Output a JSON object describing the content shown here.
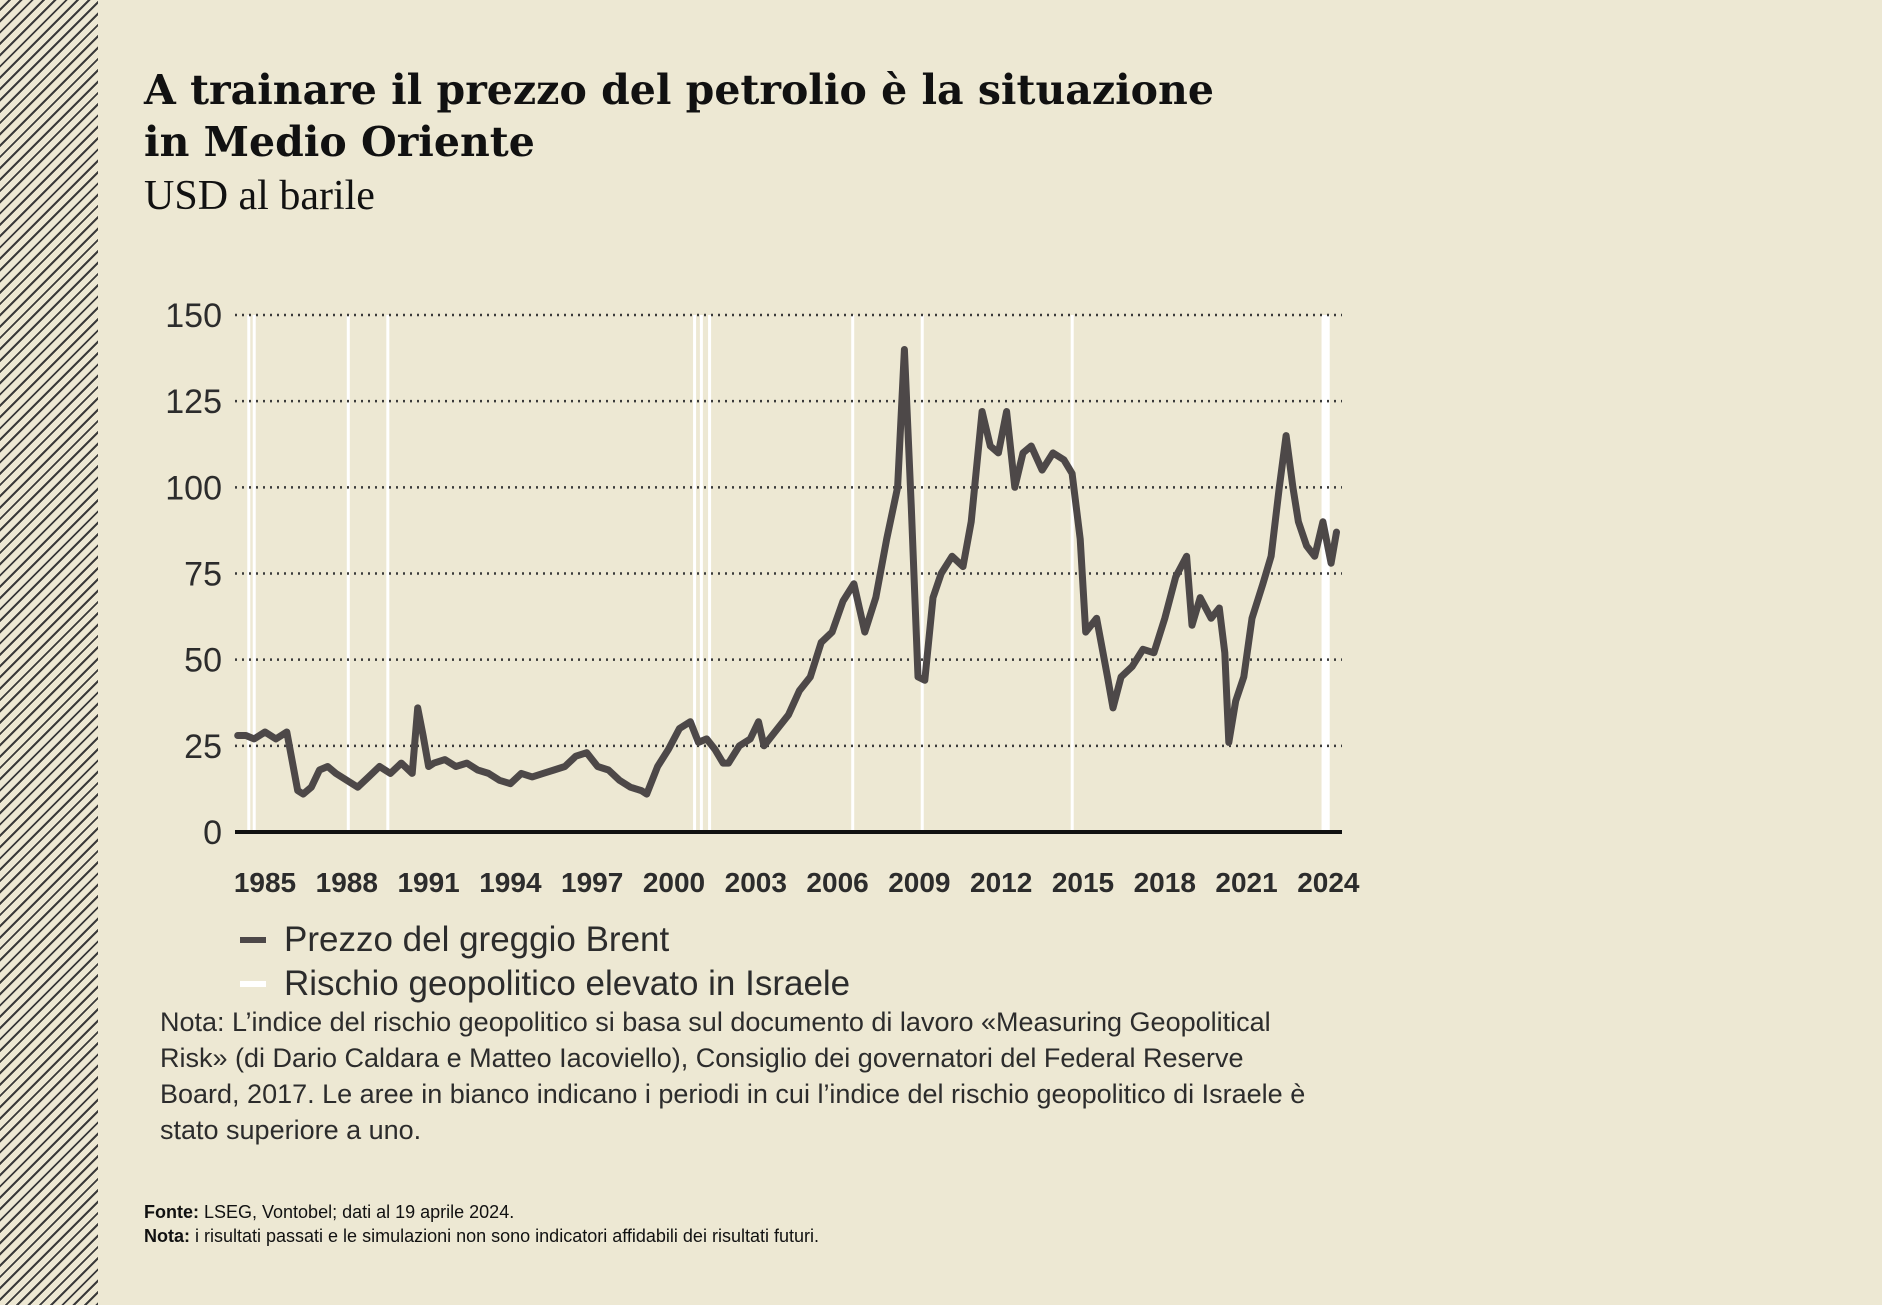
{
  "title_line1": "A trainare il prezzo del petrolio è la situazione",
  "title_line2": "in Medio Oriente",
  "subtitle": "USD al barile",
  "colors": {
    "background": "#ede8d3",
    "line": "#4d4848",
    "band": "#ffffff",
    "grid": "#3a3a3a"
  },
  "chart_data": {
    "type": "line",
    "title": "A trainare il prezzo del petrolio è la situazione in Medio Oriente",
    "ylabel": "USD al barile",
    "xlabel": "",
    "ylim": [
      0,
      150
    ],
    "xlim": [
      1983.9,
      2024.5
    ],
    "yticks": [
      "0",
      "25",
      "50",
      "75",
      "100",
      "125",
      "150"
    ],
    "xticks": [
      "1985",
      "1988",
      "1991",
      "1994",
      "1997",
      "2000",
      "2003",
      "2006",
      "2009",
      "2012",
      "2015",
      "2018",
      "2021",
      "2024"
    ],
    "grid": "horizontal dotted",
    "legend_position": "bottom-left",
    "series": [
      {
        "name": "Prezzo del greggio Brent",
        "x": [
          1984.0,
          1984.3,
          1984.6,
          1985.0,
          1985.4,
          1985.8,
          1986.2,
          1986.4,
          1986.7,
          1987.0,
          1987.3,
          1987.6,
          1988.0,
          1988.4,
          1988.8,
          1989.2,
          1989.6,
          1990.0,
          1990.4,
          1990.6,
          1990.8,
          1991.0,
          1991.2,
          1991.6,
          1992.0,
          1992.4,
          1992.8,
          1993.2,
          1993.6,
          1994.0,
          1994.4,
          1994.8,
          1995.2,
          1995.6,
          1996.0,
          1996.4,
          1996.8,
          1997.2,
          1997.6,
          1998.0,
          1998.4,
          1998.8,
          1999.0,
          1999.4,
          1999.8,
          2000.2,
          2000.6,
          2000.9,
          2001.2,
          2001.5,
          2001.8,
          2002.0,
          2002.4,
          2002.8,
          2003.1,
          2003.3,
          2003.8,
          2004.2,
          2004.6,
          2005.0,
          2005.4,
          2005.8,
          2006.2,
          2006.6,
          2007.0,
          2007.4,
          2007.8,
          2008.2,
          2008.45,
          2008.7,
          2008.95,
          2009.2,
          2009.5,
          2009.8,
          2010.2,
          2010.6,
          2010.9,
          2011.3,
          2011.6,
          2011.9,
          2012.2,
          2012.5,
          2012.8,
          2013.1,
          2013.5,
          2013.9,
          2014.3,
          2014.6,
          2014.9,
          2015.1,
          2015.5,
          2015.9,
          2016.1,
          2016.4,
          2016.8,
          2017.2,
          2017.6,
          2018.0,
          2018.4,
          2018.8,
          2019.0,
          2019.3,
          2019.7,
          2020.0,
          2020.2,
          2020.35,
          2020.6,
          2020.9,
          2021.2,
          2021.6,
          2021.9,
          2022.2,
          2022.45,
          2022.7,
          2022.9,
          2023.2,
          2023.5,
          2023.8,
          2024.1,
          2024.3
        ],
        "values": [
          28,
          28,
          27,
          29,
          27,
          29,
          12,
          11,
          13,
          18,
          19,
          17,
          15,
          13,
          16,
          19,
          17,
          20,
          17,
          36,
          28,
          19,
          20,
          21,
          19,
          20,
          18,
          17,
          15,
          14,
          17,
          16,
          17,
          18,
          19,
          22,
          23,
          19,
          18,
          15,
          13,
          12,
          11,
          19,
          24,
          30,
          32,
          26,
          27,
          24,
          20,
          20,
          25,
          27,
          32,
          25,
          30,
          34,
          41,
          45,
          55,
          58,
          67,
          72,
          58,
          68,
          85,
          100,
          140,
          95,
          45,
          44,
          68,
          75,
          80,
          77,
          90,
          122,
          112,
          110,
          122,
          100,
          110,
          112,
          105,
          110,
          108,
          104,
          85,
          58,
          62,
          45,
          36,
          45,
          48,
          53,
          52,
          62,
          74,
          80,
          60,
          68,
          62,
          65,
          52,
          26,
          38,
          45,
          62,
          72,
          80,
          100,
          115,
          100,
          90,
          83,
          80,
          90,
          78,
          87
        ]
      },
      {
        "name": "Rischio geopolitico elevato in Israele",
        "type": "band",
        "x_ranges": [
          [
            1984.35,
            1984.45
          ],
          [
            1984.55,
            1984.65
          ],
          [
            1988.0,
            1988.1
          ],
          [
            1989.45,
            1989.55
          ],
          [
            2000.7,
            2000.8
          ],
          [
            2000.95,
            2001.05
          ],
          [
            2001.25,
            2001.35
          ],
          [
            2006.5,
            2006.6
          ],
          [
            2009.05,
            2009.15
          ],
          [
            2014.55,
            2014.65
          ],
          [
            2023.75,
            2024.05
          ]
        ]
      }
    ]
  },
  "legend": [
    {
      "label": "Prezzo del greggio Brent",
      "color": "#4d4848"
    },
    {
      "label": "Rischio geopolitico elevato in Israele",
      "color": "#ffffff"
    }
  ],
  "note_text": "Nota: L’indice del rischio geopolitico si basa sul documento di lavoro «Measuring Geopolitical Risk» (di Dario Caldara e Matteo Iacoviello), Consiglio dei governatori del Federal Reserve Board, 2017. Le aree in bianco indicano i periodi in cui l’indice del rischio geopolitico di Israele è stato superiore a uno.",
  "source": {
    "label": "Fonte:",
    "text": " LSEG, Vontobel; dati al 19 aprile 2024.",
    "disclaimer_label": "Nota:",
    "disclaimer_text": " i risultati passati e le simulazioni non sono indicatori affidabili dei risultati futuri."
  }
}
